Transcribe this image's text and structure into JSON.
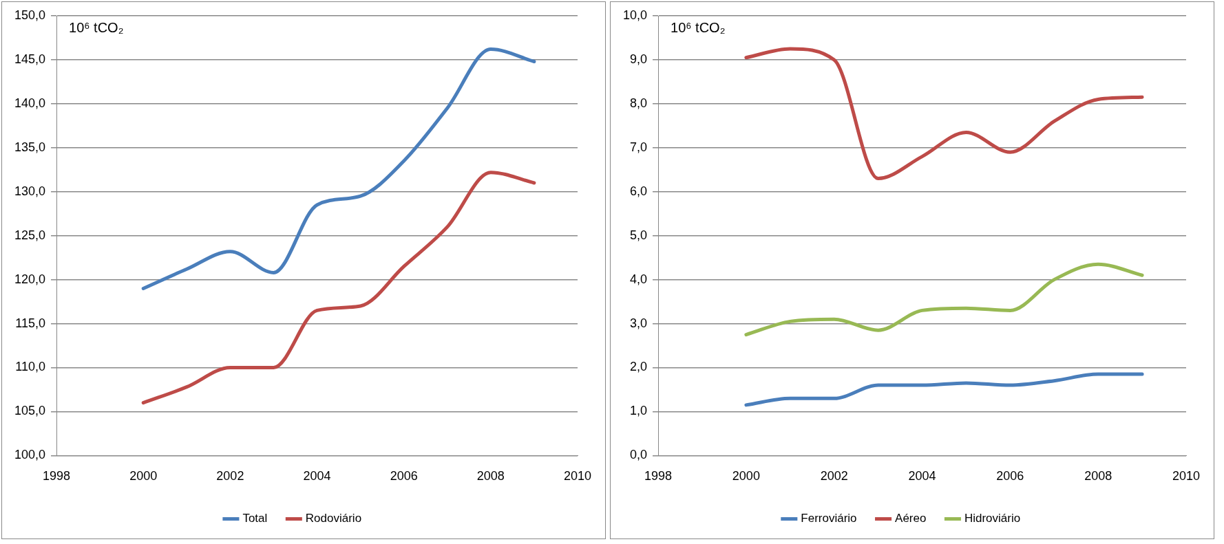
{
  "chart_data": [
    {
      "type": "line",
      "ylabel": "10⁶ tCO₂",
      "x": [
        2000,
        2001,
        2002,
        2003,
        2004,
        2005,
        2006,
        2007,
        2008,
        2009
      ],
      "xlim": [
        1998,
        2010
      ],
      "xticks": [
        1998,
        2000,
        2002,
        2004,
        2006,
        2008,
        2010
      ],
      "ylim": [
        100,
        150
      ],
      "yticks": [
        {
          "value": 100,
          "label": "100,0"
        },
        {
          "value": 105,
          "label": "105,0"
        },
        {
          "value": 110,
          "label": "110,0"
        },
        {
          "value": 115,
          "label": "115,0"
        },
        {
          "value": 120,
          "label": "120,0"
        },
        {
          "value": 125,
          "label": "125,0"
        },
        {
          "value": 130,
          "label": "130,0"
        },
        {
          "value": 135,
          "label": "135,0"
        },
        {
          "value": 140,
          "label": "140,0"
        },
        {
          "value": 145,
          "label": "145,0"
        },
        {
          "value": 150,
          "label": "150,0"
        }
      ],
      "grid": "y",
      "legend": "bottom",
      "marker": "none",
      "series": [
        {
          "name": "Total",
          "color": "#4a7ebb",
          "values": [
            119,
            121.2,
            123.2,
            120.8,
            128.5,
            129.5,
            133.5,
            139.5,
            146.2,
            144.8
          ]
        },
        {
          "name": "Rodoviário",
          "color": "#be4b48",
          "values": [
            106,
            107.8,
            110,
            110,
            116.5,
            117,
            121.5,
            126,
            132.2,
            131
          ]
        }
      ]
    },
    {
      "type": "line",
      "ylabel": "10⁶ tCO₂",
      "x": [
        2000,
        2001,
        2002,
        2003,
        2004,
        2005,
        2006,
        2007,
        2008,
        2009
      ],
      "xlim": [
        1998,
        2010
      ],
      "xticks": [
        1998,
        2000,
        2002,
        2004,
        2006,
        2008,
        2010
      ],
      "ylim": [
        0,
        10
      ],
      "yticks": [
        {
          "value": 0,
          "label": "0,0"
        },
        {
          "value": 1,
          "label": "1,0"
        },
        {
          "value": 2,
          "label": "2,0"
        },
        {
          "value": 3,
          "label": "3,0"
        },
        {
          "value": 4,
          "label": "4,0"
        },
        {
          "value": 5,
          "label": "5,0"
        },
        {
          "value": 6,
          "label": "6,0"
        },
        {
          "value": 7,
          "label": "7,0"
        },
        {
          "value": 8,
          "label": "8,0"
        },
        {
          "value": 9,
          "label": "9,0"
        },
        {
          "value": 10,
          "label": "10,0"
        }
      ],
      "grid": "y",
      "legend": "bottom",
      "marker": "none",
      "series": [
        {
          "name": "Ferroviário",
          "color": "#4a7ebb",
          "values": [
            1.15,
            1.3,
            1.3,
            1.6,
            1.6,
            1.65,
            1.6,
            1.7,
            1.85,
            1.85
          ]
        },
        {
          "name": "Aéreo",
          "color": "#be4b48",
          "values": [
            9.05,
            9.25,
            9.0,
            6.3,
            6.8,
            7.35,
            6.9,
            7.6,
            8.1,
            8.15
          ]
        },
        {
          "name": "Hidroviário",
          "color": "#98b954",
          "values": [
            2.75,
            3.05,
            3.1,
            2.85,
            3.3,
            3.35,
            3.3,
            4.0,
            4.35,
            4.1
          ]
        }
      ]
    }
  ]
}
